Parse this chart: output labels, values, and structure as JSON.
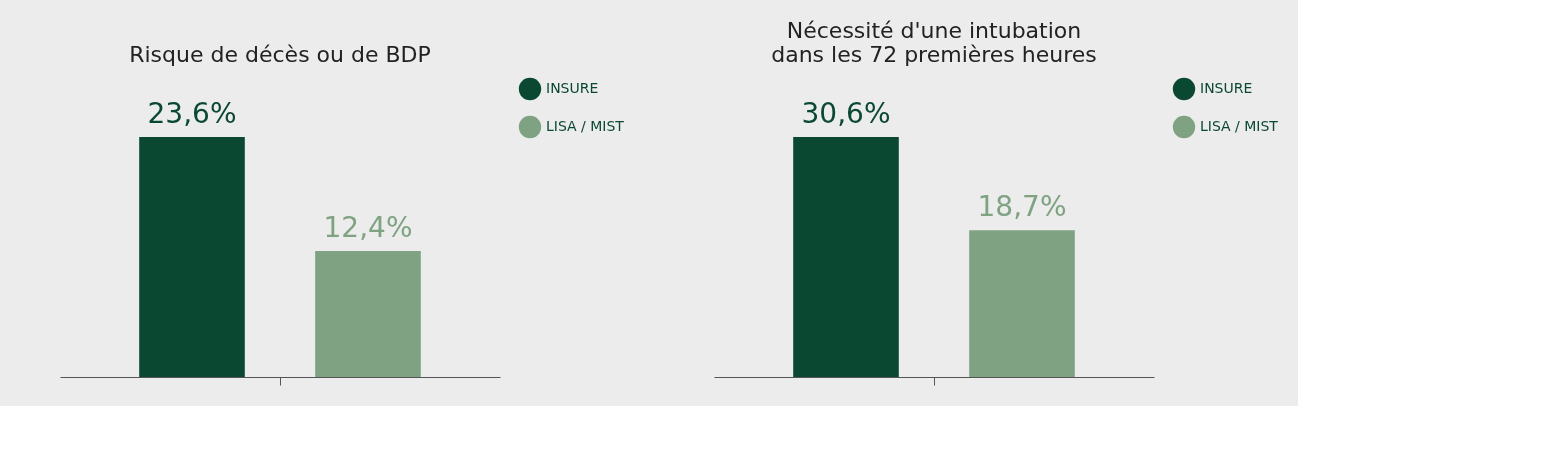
{
  "chart_data": [
    {
      "type": "bar",
      "title": "Risque de décès ou de BDP",
      "categories": [
        null
      ],
      "series": [
        {
          "name": "INSURE",
          "color": "#0b4832",
          "values": [
            23.6
          ],
          "value_labels": [
            "23,6%"
          ]
        },
        {
          "name": "LISA / MIST",
          "color": "#7fa382",
          "values": [
            12.4
          ],
          "value_labels": [
            "12,4%"
          ]
        }
      ],
      "legend": "right",
      "tick_labels": false,
      "grid": false
    },
    {
      "type": "bar",
      "title": "Nécessité d'une intubation\ndans les 72 premières heures",
      "categories": [
        null
      ],
      "series": [
        {
          "name": "INSURE",
          "color": "#0b4832",
          "values": [
            30.6
          ],
          "value_labels": [
            "30,6%"
          ]
        },
        {
          "name": "LISA / MIST",
          "color": "#7fa382",
          "values": [
            18.7
          ],
          "value_labels": [
            "18,7%"
          ]
        }
      ],
      "legend": "right",
      "tick_labels": false,
      "grid": false
    }
  ]
}
